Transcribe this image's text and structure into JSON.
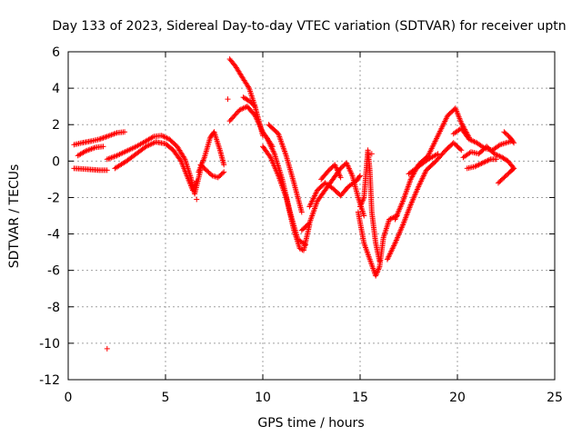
{
  "chart_data": {
    "type": "scatter",
    "title": "Day 133 of 2023, Sidereal Day-to-day VTEC variation (SDTVAR) for receiver uptn",
    "xlabel": "GPS time / hours",
    "ylabel": "SDTVAR / TECUs",
    "xlim": [
      0,
      25
    ],
    "ylim": [
      -12,
      6
    ],
    "xticks": [
      0,
      5,
      10,
      15,
      20,
      25
    ],
    "yticks": [
      -12,
      -10,
      -8,
      -6,
      -4,
      -2,
      0,
      2,
      4,
      6
    ],
    "grid": true,
    "marker": "+",
    "series": [
      {
        "name": "SDTVAR",
        "color": "#ff0000",
        "bands": [
          {
            "points": [
              [
                0.3,
                0.9
              ],
              [
                0.7,
                1.0
              ],
              [
                1.2,
                1.1
              ],
              [
                1.6,
                1.2
              ],
              [
                2.0,
                1.35
              ],
              [
                2.5,
                1.55
              ],
              [
                2.9,
                1.6
              ]
            ]
          },
          {
            "points": [
              [
                0.3,
                -0.4
              ],
              [
                1.0,
                -0.45
              ],
              [
                1.6,
                -0.5
              ],
              [
                2.0,
                -0.5
              ]
            ]
          },
          {
            "points": [
              [
                0.5,
                0.3
              ],
              [
                0.9,
                0.55
              ],
              [
                1.4,
                0.75
              ],
              [
                1.8,
                0.8
              ]
            ]
          },
          {
            "points": [
              [
                2.0,
                0.1
              ],
              [
                2.5,
                0.3
              ],
              [
                3.0,
                0.55
              ],
              [
                3.5,
                0.8
              ],
              [
                4.0,
                1.1
              ],
              [
                4.4,
                1.35
              ],
              [
                4.8,
                1.4
              ],
              [
                5.2,
                1.2
              ],
              [
                5.6,
                0.8
              ],
              [
                6.0,
                0.1
              ],
              [
                6.3,
                -0.9
              ],
              [
                6.5,
                -1.8
              ],
              [
                6.8,
                -0.5
              ]
            ]
          },
          {
            "points": [
              [
                2.4,
                -0.4
              ],
              [
                3.0,
                0.0
              ],
              [
                3.5,
                0.4
              ],
              [
                4.0,
                0.8
              ],
              [
                4.5,
                1.05
              ],
              [
                5.0,
                0.95
              ],
              [
                5.4,
                0.6
              ],
              [
                5.8,
                0.0
              ],
              [
                6.1,
                -0.8
              ],
              [
                6.4,
                -1.6
              ],
              [
                6.6,
                -1.1
              ]
            ]
          },
          {
            "points": [
              [
                6.7,
                -0.6
              ],
              [
                7.0,
                0.2
              ],
              [
                7.3,
                1.3
              ],
              [
                7.5,
                1.6
              ],
              [
                7.8,
                0.6
              ],
              [
                8.0,
                -0.2
              ]
            ]
          },
          {
            "points": [
              [
                6.8,
                -0.2
              ],
              [
                7.1,
                -0.5
              ],
              [
                7.4,
                -0.8
              ],
              [
                7.7,
                -0.9
              ],
              [
                8.0,
                -0.6
              ]
            ]
          },
          {
            "points": [
              [
                8.3,
                5.6
              ],
              [
                8.6,
                5.2
              ],
              [
                9.0,
                4.5
              ],
              [
                9.3,
                4.0
              ],
              [
                9.6,
                3.0
              ],
              [
                9.8,
                2.2
              ],
              [
                10.0,
                1.4
              ]
            ]
          },
          {
            "points": [
              [
                8.3,
                2.2
              ],
              [
                8.8,
                2.8
              ],
              [
                9.2,
                3.0
              ],
              [
                9.6,
                2.5
              ],
              [
                10.0,
                1.6
              ],
              [
                10.5,
                0.8
              ]
            ]
          },
          {
            "points": [
              [
                9.0,
                3.5
              ],
              [
                9.3,
                3.3
              ],
              [
                9.6,
                3.0
              ]
            ]
          },
          {
            "points": [
              [
                10.0,
                0.8
              ],
              [
                10.4,
                0.2
              ],
              [
                10.8,
                -0.8
              ],
              [
                11.2,
                -2.0
              ],
              [
                11.6,
                -3.8
              ],
              [
                11.9,
                -4.8
              ],
              [
                12.1,
                -4.9
              ],
              [
                12.4,
                -3.5
              ]
            ]
          },
          {
            "points": [
              [
                10.2,
                1.3
              ],
              [
                10.6,
                0.4
              ],
              [
                11.0,
                -1.0
              ],
              [
                11.4,
                -2.8
              ],
              [
                11.8,
                -4.3
              ],
              [
                12.2,
                -4.6
              ]
            ]
          },
          {
            "points": [
              [
                10.3,
                2.0
              ],
              [
                10.8,
                1.5
              ],
              [
                11.2,
                0.3
              ],
              [
                11.6,
                -1.2
              ],
              [
                12.0,
                -2.8
              ]
            ]
          },
          {
            "points": [
              [
                12.0,
                -3.8
              ],
              [
                12.4,
                -3.4
              ],
              [
                12.8,
                -2.2
              ],
              [
                13.2,
                -1.6
              ],
              [
                13.6,
                -1.0
              ],
              [
                14.0,
                -0.4
              ],
              [
                14.3,
                -0.1
              ],
              [
                14.6,
                -0.8
              ],
              [
                14.9,
                -2.0
              ],
              [
                15.2,
                -3.0
              ]
            ]
          },
          {
            "points": [
              [
                12.4,
                -2.5
              ],
              [
                12.8,
                -1.6
              ],
              [
                13.2,
                -1.2
              ],
              [
                13.6,
                -1.5
              ],
              [
                14.0,
                -1.9
              ],
              [
                14.4,
                -1.4
              ],
              [
                14.8,
                -1.1
              ],
              [
                15.0,
                -0.8
              ]
            ]
          },
          {
            "points": [
              [
                13.0,
                -1.0
              ],
              [
                13.4,
                -0.5
              ],
              [
                13.7,
                -0.2
              ],
              [
                14.0,
                -0.9
              ]
            ]
          },
          {
            "points": [
              [
                15.0,
                -2.5
              ],
              [
                15.2,
                -2.0
              ],
              [
                15.4,
                0.6
              ],
              [
                15.5,
                -0.5
              ],
              [
                15.6,
                -2.8
              ],
              [
                15.8,
                -4.5
              ],
              [
                16.0,
                -5.5
              ]
            ]
          },
          {
            "points": [
              [
                14.9,
                -2.8
              ],
              [
                15.2,
                -4.5
              ],
              [
                15.5,
                -5.4
              ],
              [
                15.8,
                -6.3
              ],
              [
                16.0,
                -5.8
              ],
              [
                16.2,
                -4.2
              ],
              [
                16.5,
                -3.2
              ],
              [
                16.9,
                -3.0
              ]
            ]
          },
          {
            "points": [
              [
                16.4,
                -5.4
              ],
              [
                16.8,
                -4.5
              ],
              [
                17.2,
                -3.5
              ],
              [
                17.6,
                -2.4
              ],
              [
                18.0,
                -1.4
              ],
              [
                18.4,
                -0.5
              ],
              [
                18.9,
                0.0
              ],
              [
                19.4,
                0.6
              ],
              [
                19.8,
                1.0
              ],
              [
                20.2,
                0.6
              ]
            ]
          },
          {
            "points": [
              [
                16.8,
                -3.2
              ],
              [
                17.2,
                -2.2
              ],
              [
                17.6,
                -1.0
              ],
              [
                18.0,
                -0.2
              ],
              [
                18.5,
                0.3
              ],
              [
                19.0,
                1.4
              ],
              [
                19.5,
                2.5
              ],
              [
                19.9,
                2.9
              ],
              [
                20.2,
                2.1
              ],
              [
                20.6,
                1.3
              ]
            ]
          },
          {
            "points": [
              [
                17.5,
                -0.7
              ],
              [
                18.0,
                -0.3
              ],
              [
                18.5,
                0.1
              ],
              [
                19.0,
                0.4
              ]
            ]
          },
          {
            "points": [
              [
                19.8,
                1.5
              ],
              [
                20.2,
                1.8
              ],
              [
                20.6,
                1.2
              ],
              [
                21.0,
                1.0
              ],
              [
                21.4,
                0.7
              ],
              [
                21.8,
                0.6
              ],
              [
                22.2,
                0.9
              ],
              [
                22.5,
                1.0
              ],
              [
                22.8,
                1.1
              ]
            ]
          },
          {
            "points": [
              [
                20.3,
                0.2
              ],
              [
                20.7,
                0.5
              ],
              [
                21.1,
                0.4
              ],
              [
                21.5,
                0.8
              ],
              [
                21.9,
                0.4
              ],
              [
                22.3,
                0.2
              ],
              [
                22.6,
                0.0
              ],
              [
                22.9,
                -0.4
              ]
            ]
          },
          {
            "points": [
              [
                20.5,
                -0.4
              ],
              [
                20.9,
                -0.3
              ],
              [
                21.3,
                -0.1
              ],
              [
                21.7,
                0.1
              ],
              [
                22.0,
                0.1
              ]
            ]
          },
          {
            "points": [
              [
                22.1,
                -1.2
              ],
              [
                22.4,
                -0.9
              ],
              [
                22.7,
                -0.6
              ],
              [
                22.9,
                -0.4
              ]
            ]
          },
          {
            "points": [
              [
                22.4,
                1.6
              ],
              [
                22.7,
                1.3
              ],
              [
                22.9,
                1.0
              ]
            ]
          }
        ],
        "outliers": [
          [
            2.0,
            -10.3
          ],
          [
            8.2,
            3.4
          ],
          [
            15.6,
            0.4
          ],
          [
            6.6,
            -2.1
          ]
        ]
      }
    ]
  }
}
